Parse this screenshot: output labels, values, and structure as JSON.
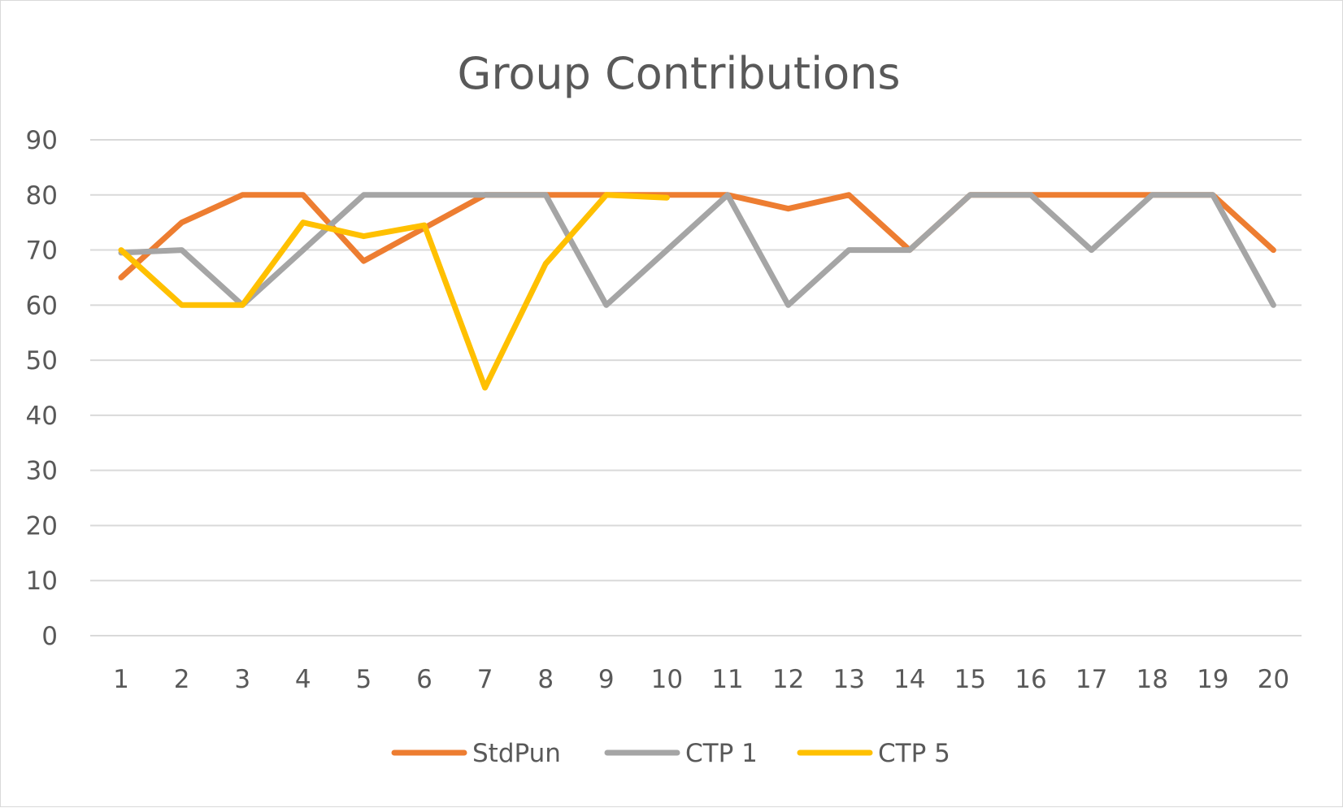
{
  "chart_data": {
    "type": "line",
    "title": "Group Contributions",
    "xlabel": "",
    "ylabel": "",
    "categories": [
      "1",
      "2",
      "3",
      "4",
      "5",
      "6",
      "7",
      "8",
      "9",
      "10",
      "11",
      "12",
      "13",
      "14",
      "15",
      "16",
      "17",
      "18",
      "19",
      "20"
    ],
    "ylim": [
      0,
      90
    ],
    "yticks": [
      0,
      10,
      20,
      30,
      40,
      50,
      60,
      70,
      80,
      90
    ],
    "grid": true,
    "legend_position": "bottom",
    "series": [
      {
        "name": "StdPun",
        "color": "#ED7D31",
        "values": [
          65,
          75,
          80,
          80,
          68,
          74,
          80,
          80,
          80,
          80,
          80,
          77.5,
          80,
          70,
          80,
          80,
          80,
          80,
          80,
          70
        ]
      },
      {
        "name": "CTP 1",
        "color": "#A5A5A5",
        "values": [
          69.5,
          70,
          60,
          70,
          80,
          80,
          80,
          80,
          60,
          70,
          80,
          60,
          70,
          70,
          80,
          80,
          70,
          80,
          80,
          60
        ]
      },
      {
        "name": "CTP 5",
        "color": "#FFC000",
        "values": [
          70,
          60,
          60,
          75,
          72.5,
          74.5,
          45,
          67.5,
          80,
          79.5,
          null,
          null,
          null,
          null,
          null,
          null,
          null,
          null,
          null,
          null
        ]
      }
    ]
  }
}
